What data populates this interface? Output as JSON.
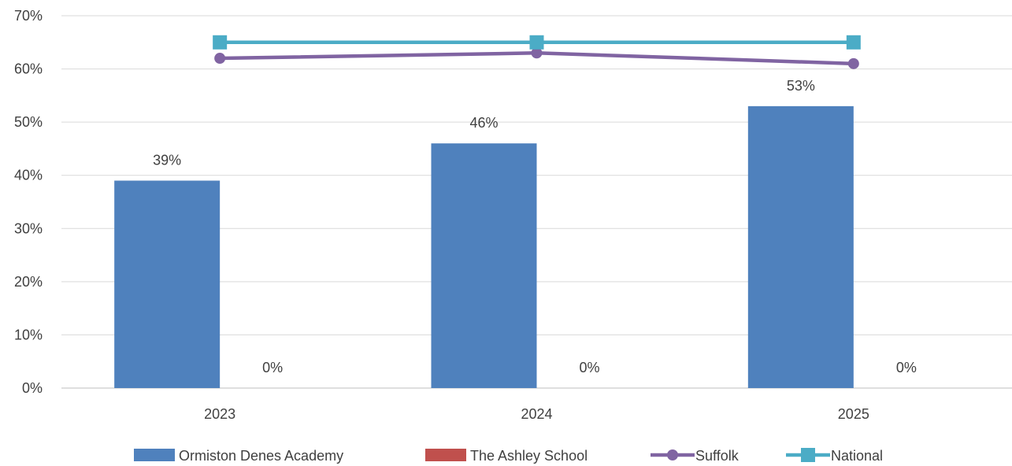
{
  "chart_data": {
    "type": "bar",
    "categories": [
      "2023",
      "2024",
      "2025"
    ],
    "ylim": [
      0,
      70
    ],
    "y_ticks": [
      "0%",
      "10%",
      "20%",
      "30%",
      "40%",
      "50%",
      "60%",
      "70%"
    ],
    "y_tick_values": [
      0,
      10,
      20,
      30,
      40,
      50,
      60,
      70
    ],
    "grid": true,
    "legend_position": "bottom",
    "series": [
      {
        "name": "Ormiston Denes Academy",
        "kind": "bar",
        "values": [
          39,
          46,
          53
        ],
        "labels": [
          "39%",
          "46%",
          "53%"
        ],
        "color": "#4F81BD"
      },
      {
        "name": "The Ashley School",
        "kind": "bar",
        "values": [
          0,
          0,
          0
        ],
        "labels": [
          "0%",
          "0%",
          "0%"
        ],
        "color": "#C0504D"
      },
      {
        "name": "Suffolk",
        "kind": "line",
        "marker": "circle",
        "values": [
          62,
          63,
          61
        ],
        "color": "#8064A2"
      },
      {
        "name": "National",
        "kind": "line",
        "marker": "square",
        "values": [
          65,
          65,
          65
        ],
        "color": "#4BACC6"
      }
    ]
  }
}
